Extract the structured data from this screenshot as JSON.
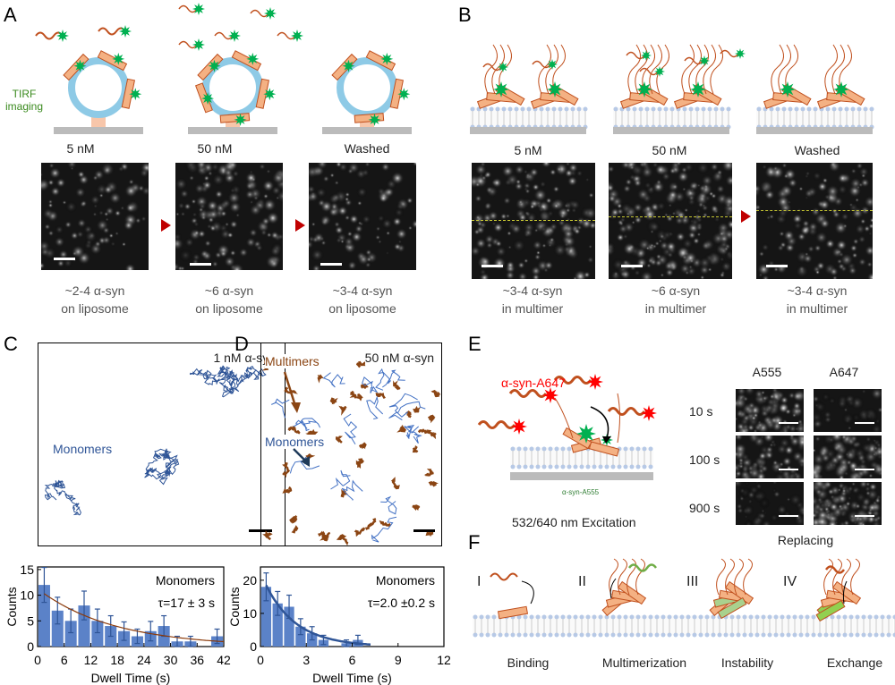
{
  "panels": {
    "A": {
      "label": "A",
      "tirf": "TIRF imaging",
      "conditions": [
        "5 nM",
        "50 nM",
        "Washed"
      ],
      "captions": [
        [
          "~2-4 α-syn",
          "on liposome"
        ],
        [
          "~6 α-syn",
          "on liposome"
        ],
        [
          "~3-4 α-syn",
          "on liposome"
        ]
      ]
    },
    "B": {
      "label": "B",
      "conditions": [
        "5 nM",
        "50 nM",
        "Washed"
      ],
      "captions": [
        [
          "~3-4 α-syn",
          "in multimer"
        ],
        [
          "~6 α-syn",
          "in multimer"
        ],
        [
          "~3-4 α-syn",
          "in multimer"
        ]
      ]
    },
    "C": {
      "label": "C",
      "title": "1 nM α-syn",
      "annotation": "Monomers"
    },
    "D": {
      "label": "D",
      "title": "50 nM α-syn",
      "annotation_multimers": "Multimers",
      "annotation_monomers": "Monomers"
    },
    "E": {
      "label": "E",
      "probe_red": "α-syn-A647",
      "probe_green": "α-syn-A555",
      "excitation": "532/640 nm Excitation",
      "channels": [
        "A555",
        "A647"
      ],
      "times": [
        "10 s",
        "100 s",
        "900 s"
      ],
      "footer": "Replacing"
    },
    "F": {
      "label": "F",
      "steps": [
        {
          "numeral": "I",
          "name": "Binding"
        },
        {
          "numeral": "II",
          "name": "Multimerization"
        },
        {
          "numeral": "III",
          "name": "Instability"
        },
        {
          "numeral": "IV",
          "name": "Exchange"
        }
      ]
    }
  },
  "colors": {
    "bar": "#5b82c8",
    "fit_C": "#8b3a0a",
    "fit_D": "#2f5597",
    "trace_C": "#2f5597",
    "trace_D": "#4472c4",
    "multimer": "#8b4513",
    "liposome": "#8ecae6",
    "green_dye": "#00b050",
    "red_dye": "#ff0000",
    "protein": "#c0501e",
    "helix": "#f4b183"
  },
  "chart_data": [
    {
      "type": "bar",
      "panel": "C",
      "title": "",
      "xlabel": "Dwell Time (s)",
      "ylabel": "Counts",
      "annotation": [
        "Monomers",
        "τ=17 ± 3 s"
      ],
      "xlim": [
        0,
        42
      ],
      "ylim": [
        0,
        15.5
      ],
      "xticks": [
        0,
        6,
        12,
        18,
        24,
        30,
        36,
        42
      ],
      "yticks": [
        0,
        5,
        10,
        15
      ],
      "bin_width": 3,
      "bin_centers": [
        1.5,
        4.5,
        7.5,
        10.5,
        13.5,
        16.5,
        19.5,
        22.5,
        25.5,
        28.5,
        31.5,
        34.5,
        37.5,
        40.5
      ],
      "values": [
        12,
        7,
        5,
        8,
        5,
        4,
        3,
        2,
        3,
        4,
        1,
        1,
        0,
        2
      ],
      "error": [
        3.4,
        2.6,
        2.3,
        2.8,
        2.3,
        2,
        1.8,
        1.4,
        1.9,
        2,
        1,
        1,
        0,
        1.4
      ],
      "fit": {
        "model": "exponential",
        "tau": 17,
        "amplitude_at_first_bin": 10.3
      }
    },
    {
      "type": "bar",
      "panel": "D",
      "title": "",
      "xlabel": "Dwell Time (s)",
      "ylabel": "Counts",
      "annotation": [
        "Monomers",
        "τ=2.0 ±0.2 s"
      ],
      "xlim": [
        0,
        12
      ],
      "ylim": [
        0,
        24
      ],
      "xticks": [
        0,
        3,
        6,
        9,
        12
      ],
      "yticks": [
        0,
        10,
        20
      ],
      "bin_width": 0.75,
      "bin_centers": [
        0.375,
        1.125,
        1.875,
        2.625,
        3.375,
        4.125,
        4.875,
        5.625,
        6.375
      ],
      "values": [
        18,
        13,
        12,
        6,
        4,
        2,
        0,
        1,
        2
      ],
      "error": [
        4.2,
        3.6,
        3.5,
        2.4,
        2,
        1.4,
        0,
        1,
        1.4
      ],
      "fit": {
        "model": "exponential",
        "tau": 2.0,
        "amplitude_at_first_bin": 18.5,
        "x_end": 7.2
      }
    }
  ]
}
